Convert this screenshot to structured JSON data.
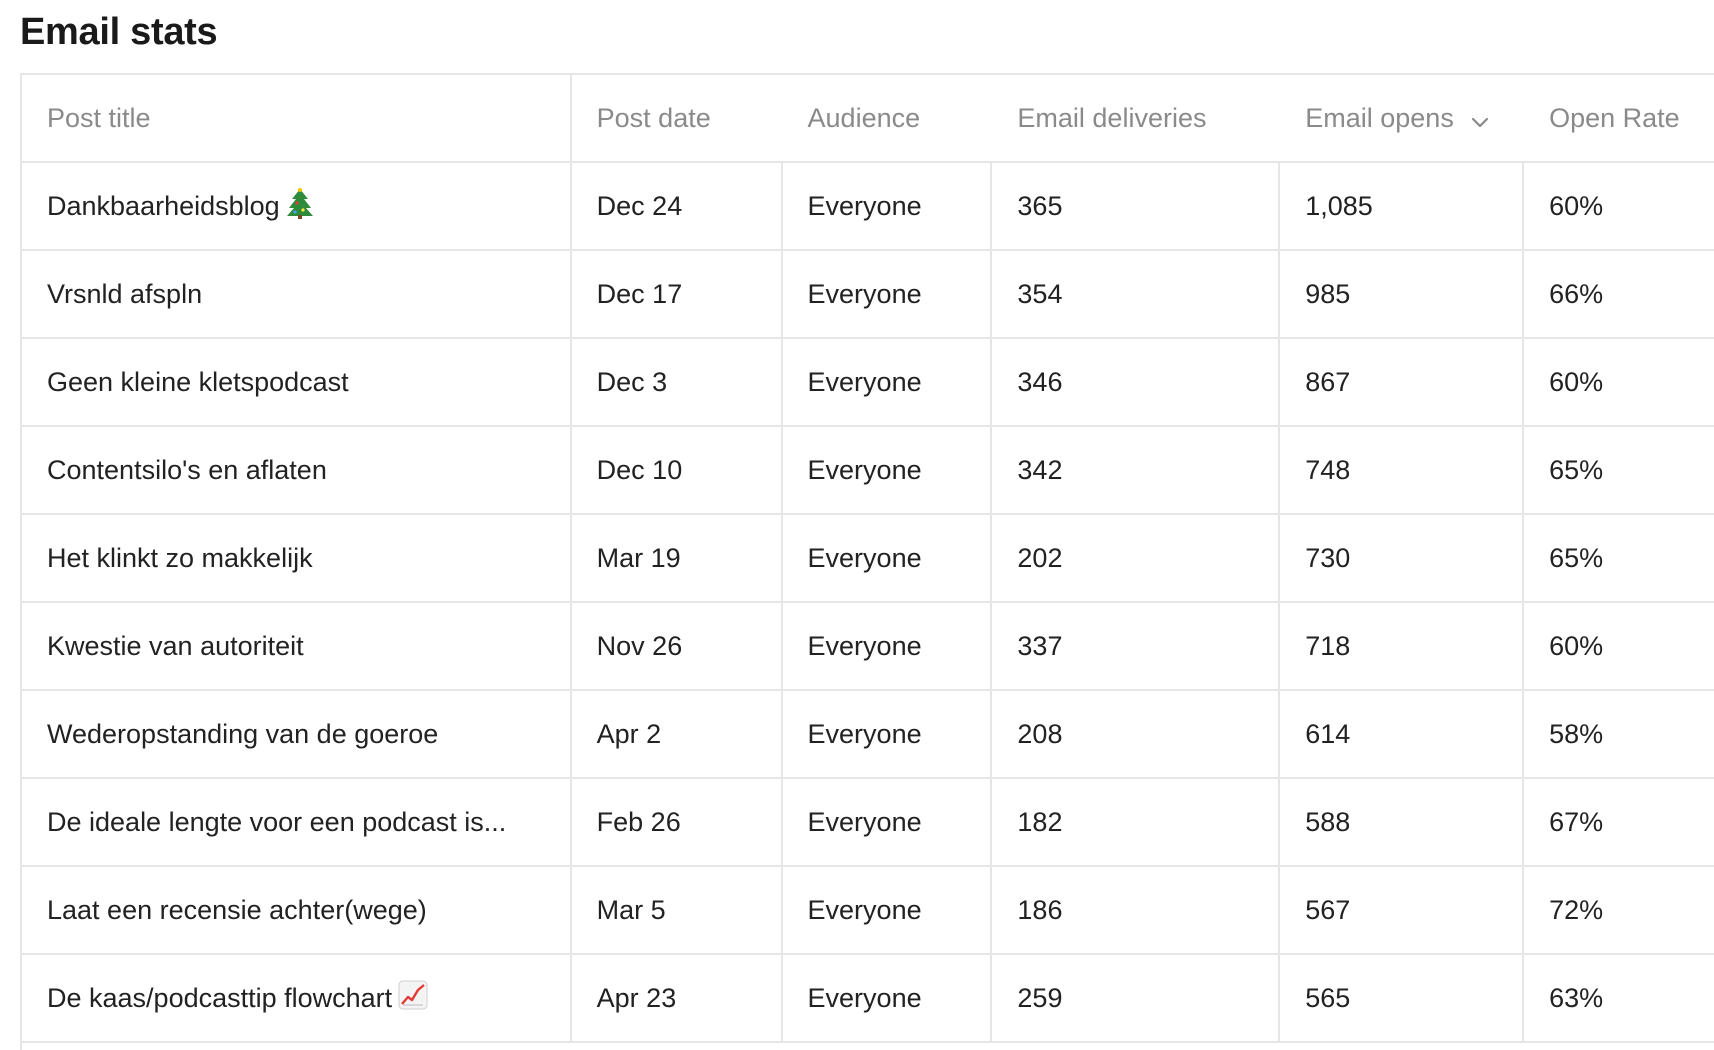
{
  "page": {
    "title": "Email stats"
  },
  "table": {
    "columns": {
      "post_title": "Post title",
      "post_date": "Post date",
      "audience": "Audience",
      "email_deliveries": "Email deliveries",
      "email_opens": "Email opens",
      "open_rate": "Open Rate"
    },
    "sort": {
      "column": "email_opens",
      "direction": "descending",
      "icon": "chevron-down-icon"
    },
    "rows": [
      {
        "title": "Dankbaarheidsblog",
        "title_icon": "christmas-tree-icon",
        "date": "Dec 24",
        "audience": "Everyone",
        "deliveries": "365",
        "opens": "1,085",
        "rate": "60%"
      },
      {
        "title": "Vrsnld afspln",
        "title_icon": "",
        "date": "Dec 17",
        "audience": "Everyone",
        "deliveries": "354",
        "opens": "985",
        "rate": "66%"
      },
      {
        "title": "Geen kleine kletspodcast",
        "title_icon": "",
        "date": "Dec 3",
        "audience": "Everyone",
        "deliveries": "346",
        "opens": "867",
        "rate": "60%"
      },
      {
        "title": "Contentsilo's en aflaten",
        "title_icon": "",
        "date": "Dec 10",
        "audience": "Everyone",
        "deliveries": "342",
        "opens": "748",
        "rate": "65%"
      },
      {
        "title": "Het klinkt zo makkelijk",
        "title_icon": "",
        "date": "Mar 19",
        "audience": "Everyone",
        "deliveries": "202",
        "opens": "730",
        "rate": "65%"
      },
      {
        "title": "Kwestie van autoriteit",
        "title_icon": "",
        "date": "Nov 26",
        "audience": "Everyone",
        "deliveries": "337",
        "opens": "718",
        "rate": "60%"
      },
      {
        "title": "Wederopstanding van de goeroe",
        "title_icon": "",
        "date": "Apr 2",
        "audience": "Everyone",
        "deliveries": "208",
        "opens": "614",
        "rate": "58%"
      },
      {
        "title": "De ideale lengte voor een podcast is...",
        "title_icon": "",
        "date": "Feb 26",
        "audience": "Everyone",
        "deliveries": "182",
        "opens": "588",
        "rate": "67%"
      },
      {
        "title": "Laat een recensie achter(wege)",
        "title_icon": "",
        "date": "Mar 5",
        "audience": "Everyone",
        "deliveries": "186",
        "opens": "567",
        "rate": "72%"
      },
      {
        "title": "De kaas/podcasttip flowchart",
        "title_icon": "chart-increasing-icon",
        "date": "Apr 23",
        "audience": "Everyone",
        "deliveries": "259",
        "opens": "565",
        "rate": "63%"
      }
    ]
  },
  "colors": {
    "border": "#e6e6e6",
    "header_text": "#8a8a8a",
    "body_text": "#222222",
    "title_text": "#1a1a1a"
  }
}
